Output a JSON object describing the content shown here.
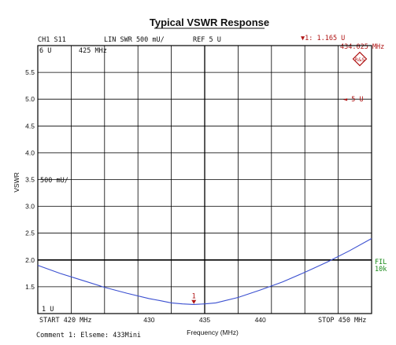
{
  "colors": {
    "trace": "#3a4fd0",
    "grid": "#000000",
    "marker": "#b01515",
    "status_green": "#1a8a1a"
  },
  "header": {
    "channel": "CH1 S11",
    "format": "LIN SWR 500 mU/",
    "reference": "REF 5 U",
    "marker_readout": "▼1:   1.165 U",
    "marker_freq": "434.025 MHz",
    "top_left_scale": "6 U",
    "top_left_freq": "425 MHz"
  },
  "annotations": {
    "ref_arrow": "◄ 5 U",
    "scale_label": "500 mU/",
    "bottom_left": "1 U",
    "fil_label": "FIL",
    "fil_value": "10k",
    "marker_number": "1",
    "start_label": "START  420 MHz",
    "stop_label": "STOP  450 MHz",
    "comment": "Comment 1: Elseme: 433Mini",
    "logo_text": "R&S"
  },
  "chart_data": {
    "type": "line",
    "title": "Typical VSWR Response",
    "xlabel": "Frequency (MHz)",
    "ylabel": "VSWR",
    "xlim": [
      420,
      450
    ],
    "ylim": [
      1.0,
      6.0
    ],
    "x_ticks": [
      430,
      435,
      440
    ],
    "x_tick_labels": [
      "430",
      "435",
      "440"
    ],
    "y_ticks": [
      1.5,
      2.0,
      2.5,
      3.0,
      3.5,
      4.0,
      4.5,
      5.0,
      5.5
    ],
    "y_tick_labels": [
      "1.5",
      "2.0",
      "2.5",
      "3.0",
      "3.5",
      "4.0",
      "4.5",
      "5.0",
      "5.5"
    ],
    "grid": true,
    "marker": {
      "x": 434.025,
      "y": 1.165
    },
    "series": [
      {
        "x": [
          420,
          422,
          424,
          426,
          428,
          430,
          431,
          432,
          433,
          434,
          435,
          436,
          438,
          440,
          442,
          444,
          446,
          448,
          450
        ],
        "y": [
          1.9,
          1.75,
          1.62,
          1.49,
          1.38,
          1.28,
          1.24,
          1.2,
          1.18,
          1.17,
          1.18,
          1.2,
          1.3,
          1.44,
          1.59,
          1.77,
          1.96,
          2.17,
          2.4
        ]
      }
    ]
  }
}
